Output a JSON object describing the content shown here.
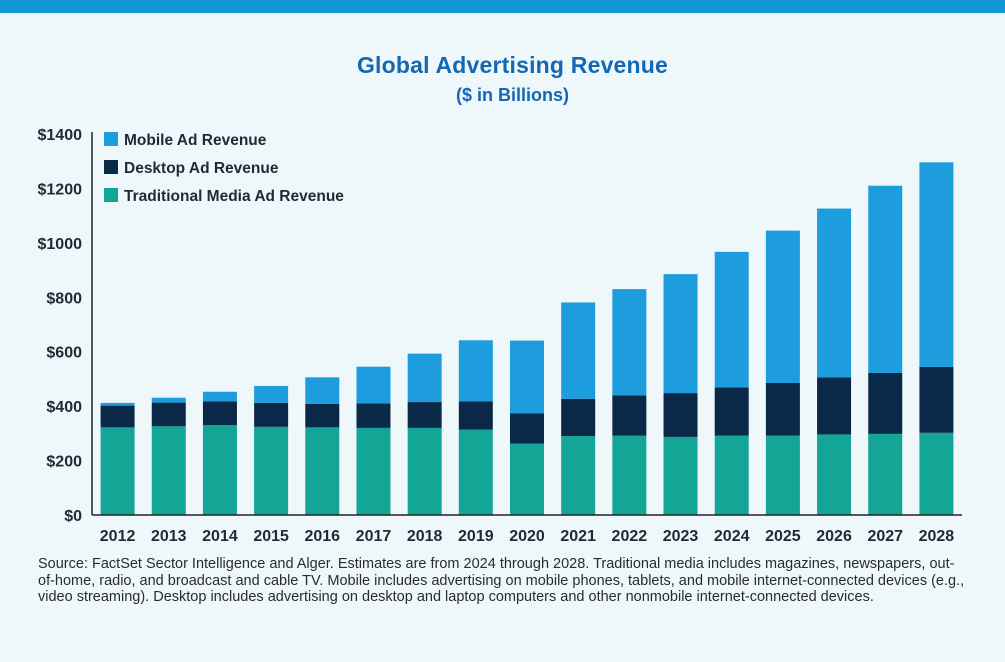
{
  "header": {
    "title": "Global Advertising Revenue",
    "subtitle": "($ in Billions)"
  },
  "colors": {
    "top_bar": "#1496d8",
    "mobile": "#1d9ddd",
    "desktop": "#0a2847",
    "traditional": "#13a596",
    "title": "#1467b4",
    "axis": "#222222"
  },
  "chart_data": {
    "type": "bar",
    "stacked": true,
    "title": "Global Advertising Revenue",
    "subtitle": "($ in Billions)",
    "xlabel": "",
    "ylabel": "",
    "ylim": [
      0,
      1400
    ],
    "yticks": [
      0,
      200,
      400,
      600,
      800,
      1000,
      1200,
      1400
    ],
    "ytick_labels": [
      "$0",
      "$200",
      "$400",
      "$600",
      "$800",
      "$1000",
      "$1200",
      "$1400"
    ],
    "legend_position": "top-left",
    "categories": [
      "2012",
      "2013",
      "2014",
      "2015",
      "2016",
      "2017",
      "2018",
      "2019",
      "2020",
      "2021",
      "2022",
      "2023",
      "2024",
      "2025",
      "2026",
      "2027",
      "2028"
    ],
    "series": [
      {
        "name": "Traditional Media Ad Revenue",
        "color": "#13a596",
        "values": [
          322,
          326,
          330,
          324,
          322,
          320,
          320,
          314,
          262,
          290,
          292,
          287,
          292,
          292,
          296,
          298,
          302
        ]
      },
      {
        "name": "Desktop Ad Revenue",
        "color": "#0a2847",
        "values": [
          80,
          87,
          88,
          88,
          86,
          90,
          95,
          104,
          112,
          137,
          148,
          161,
          177,
          193,
          210,
          224,
          242
        ]
      },
      {
        "name": "Mobile Ad Revenue",
        "color": "#1d9ddd",
        "values": [
          10,
          18,
          35,
          62,
          98,
          135,
          178,
          224,
          267,
          354,
          390,
          437,
          498,
          560,
          620,
          688,
          752
        ]
      }
    ],
    "legend": [
      "Mobile Ad Revenue",
      "Desktop Ad Revenue",
      "Traditional Media Ad Revenue"
    ]
  },
  "footer": {
    "note": "Source: FactSet Sector Intelligence and Alger. Estimates are from 2024 through 2028. Traditional media includes magazines, newspapers, out-of-home, radio, and broadcast and cable TV. Mobile includes advertising on mobile phones, tablets, and mobile internet-connected devices (e.g., video streaming). Desktop includes advertising on desktop and laptop computers and other nonmobile internet-connected devices."
  }
}
